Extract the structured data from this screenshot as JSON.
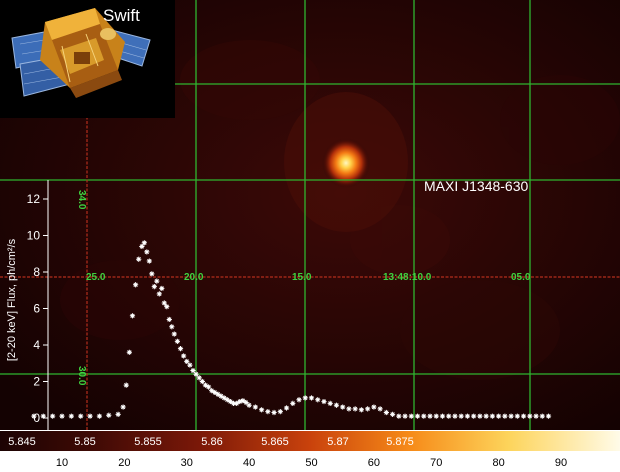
{
  "colors": {
    "background": "#000000",
    "grid_green": "#2fb52f",
    "grid_red": "#b32d1c",
    "coord_label": "#3fd23f",
    "points": "#ffffff",
    "text": "#ffffff"
  },
  "inset": {
    "title": "Swift",
    "icon": "swift-satellite-icon"
  },
  "source_label": "MAXI J1348-630",
  "coord_labels": {
    "ra": [
      "25.0",
      "20.0",
      "15.0",
      "13:48:10.0",
      "05.0"
    ],
    "dec": [
      "34.0",
      "30.0"
    ]
  },
  "colorbar": {
    "upper_ticks": [
      "5.845",
      "5.85",
      "5.855",
      "5.86",
      "5.865",
      "5.87",
      "5.875"
    ],
    "lower_ticks": [
      "10",
      "20",
      "30",
      "40",
      "50",
      "60",
      "70",
      "80",
      "90"
    ],
    "colormap": [
      "#1c0303",
      "#3f0a05",
      "#7a1808",
      "#c9420c",
      "#f68a18",
      "#fdd45b",
      "#fffbe8"
    ]
  },
  "chart_data": [
    {
      "type": "heatmap",
      "colormap": "heat",
      "colorbar_ticks": [
        5.845,
        5.85,
        5.855,
        5.86,
        5.865,
        5.87,
        5.875
      ],
      "peak_label": "MAXI J1348-630"
    },
    {
      "type": "scatter",
      "xlabel": "",
      "ylabel": "[2-20 keV] Flux, ph/cm²/s",
      "xlim": [
        5,
        100
      ],
      "ylim": [
        -0.5,
        13.5
      ],
      "xticks": [
        10,
        20,
        30,
        40,
        50,
        60,
        70,
        80,
        90
      ],
      "yticks": [
        0,
        2,
        4,
        6,
        8,
        10,
        12
      ],
      "x": [
        5.5,
        7,
        8.5,
        10,
        11.5,
        13,
        14.5,
        16,
        17.5,
        19,
        19.8,
        20.3,
        20.8,
        21.3,
        21.8,
        22.3,
        22.8,
        23.2,
        23.6,
        24,
        24.4,
        24.8,
        25.2,
        25.6,
        26,
        26.4,
        26.8,
        27.2,
        27.6,
        28,
        28.5,
        29,
        29.5,
        30,
        30.5,
        31,
        31.5,
        32,
        32.5,
        33,
        33.5,
        34,
        34.5,
        35,
        35.5,
        36,
        36.5,
        37,
        37.5,
        38,
        38.5,
        39,
        39.5,
        40,
        41,
        42,
        43,
        44,
        45,
        46,
        47,
        48,
        49,
        50,
        51,
        52,
        53,
        54,
        55,
        56,
        57,
        58,
        59,
        60,
        61,
        62,
        63,
        64,
        65,
        66,
        67,
        68,
        69,
        70,
        71,
        72,
        73,
        74,
        75,
        76,
        77,
        78,
        79,
        80,
        81,
        82,
        83,
        84,
        85,
        86,
        87,
        88
      ],
      "y": [
        0.1,
        0.1,
        0.1,
        0.1,
        0.1,
        0.1,
        0.1,
        0.1,
        0.15,
        0.2,
        0.6,
        1.8,
        3.6,
        5.6,
        7.3,
        8.7,
        9.4,
        9.6,
        9.1,
        8.6,
        7.9,
        7.2,
        7.5,
        6.8,
        7.1,
        6.3,
        6.1,
        5.4,
        5.0,
        4.6,
        4.2,
        3.8,
        3.4,
        3.1,
        2.9,
        2.6,
        2.4,
        2.2,
        2.0,
        1.8,
        1.7,
        1.5,
        1.4,
        1.3,
        1.2,
        1.1,
        1.0,
        0.9,
        0.8,
        0.8,
        0.9,
        0.95,
        0.85,
        0.7,
        0.6,
        0.45,
        0.35,
        0.3,
        0.35,
        0.55,
        0.8,
        1.0,
        1.1,
        1.1,
        1.0,
        0.9,
        0.8,
        0.7,
        0.6,
        0.5,
        0.5,
        0.45,
        0.5,
        0.6,
        0.5,
        0.3,
        0.2,
        0.1,
        0.1,
        0.1,
        0.1,
        0.1,
        0.1,
        0.1,
        0.1,
        0.1,
        0.1,
        0.1,
        0.1,
        0.1,
        0.1,
        0.1,
        0.1,
        0.1,
        0.1,
        0.1,
        0.1,
        0.1,
        0.1,
        0.1,
        0.1,
        0.1
      ]
    }
  ]
}
